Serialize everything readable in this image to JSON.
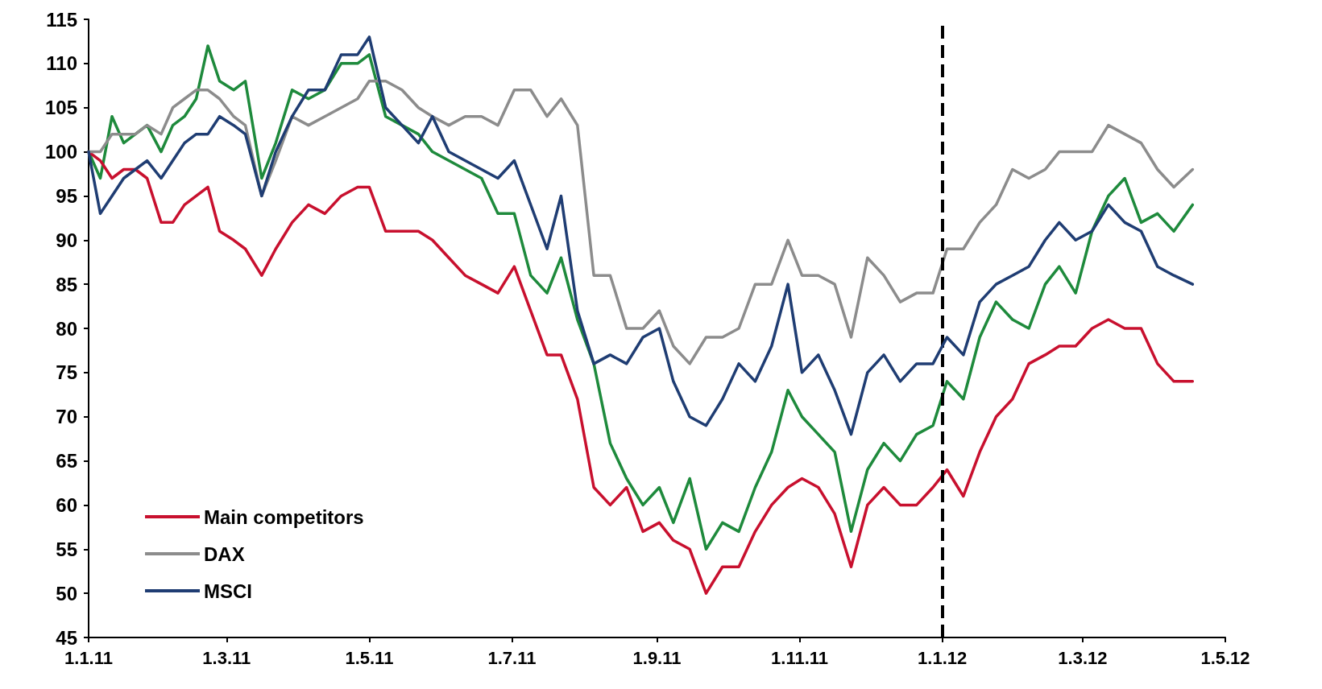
{
  "chart_data": {
    "type": "line",
    "x": [
      "2011-01-01",
      "2011-01-06",
      "2011-01-11",
      "2011-01-16",
      "2011-01-21",
      "2011-01-26",
      "2011-02-01",
      "2011-02-06",
      "2011-02-11",
      "2011-02-16",
      "2011-02-21",
      "2011-02-26",
      "2011-03-04",
      "2011-03-09",
      "2011-03-16",
      "2011-03-22",
      "2011-03-29",
      "2011-04-05",
      "2011-04-12",
      "2011-04-19",
      "2011-04-26",
      "2011-05-01",
      "2011-05-08",
      "2011-05-15",
      "2011-05-22",
      "2011-05-28",
      "2011-06-04",
      "2011-06-11",
      "2011-06-18",
      "2011-06-25",
      "2011-07-02",
      "2011-07-09",
      "2011-07-16",
      "2011-07-22",
      "2011-07-29",
      "2011-08-05",
      "2011-08-12",
      "2011-08-19",
      "2011-08-26",
      "2011-09-02",
      "2011-09-08",
      "2011-09-15",
      "2011-09-22",
      "2011-09-29",
      "2011-10-06",
      "2011-10-13",
      "2011-10-20",
      "2011-10-27",
      "2011-11-02",
      "2011-11-09",
      "2011-11-16",
      "2011-11-23",
      "2011-11-30",
      "2011-12-07",
      "2011-12-14",
      "2011-12-21",
      "2011-12-28",
      "2012-01-03",
      "2012-01-10",
      "2012-01-17",
      "2012-01-24",
      "2012-01-31",
      "2012-02-07",
      "2012-02-14",
      "2012-02-20",
      "2012-02-27",
      "2012-03-05",
      "2012-03-12",
      "2012-03-19",
      "2012-03-26",
      "2012-04-02",
      "2012-04-09",
      "2012-04-17"
    ],
    "series": [
      {
        "color": "#1e8a3c",
        "values": [
          100,
          97,
          104,
          101,
          102,
          103,
          100,
          103,
          104,
          106,
          112,
          108,
          107,
          108,
          97,
          101,
          107,
          106,
          107,
          110,
          110,
          111,
          104,
          103,
          102,
          100,
          99,
          98,
          97,
          93,
          93,
          86,
          84,
          88,
          81,
          76,
          67,
          63,
          60,
          62,
          58,
          63,
          55,
          58,
          57,
          62,
          66,
          73,
          70,
          68,
          66,
          57,
          64,
          67,
          65,
          68,
          69,
          74,
          72,
          79,
          83,
          81,
          80,
          85,
          87,
          84,
          91,
          95,
          97,
          92,
          93,
          91,
          94
        ]
      },
      {
        "name": "Main competitors",
        "color": "#c8102e",
        "values": [
          100,
          99,
          97,
          98,
          98,
          97,
          92,
          92,
          94,
          95,
          96,
          91,
          90,
          89,
          86,
          89,
          92,
          94,
          93,
          95,
          96,
          96,
          91,
          91,
          91,
          90,
          88,
          86,
          85,
          84,
          87,
          82,
          77,
          77,
          72,
          62,
          60,
          62,
          57,
          58,
          56,
          55,
          50,
          53,
          53,
          57,
          60,
          62,
          63,
          62,
          59,
          53,
          60,
          62,
          60,
          60,
          62,
          64,
          61,
          66,
          70,
          72,
          76,
          77,
          78,
          78,
          80,
          81,
          80,
          80,
          76,
          74,
          74
        ]
      },
      {
        "name": "DAX",
        "color": "#8c8c8c",
        "values": [
          100,
          100,
          102,
          102,
          102,
          103,
          102,
          105,
          106,
          107,
          107,
          106,
          104,
          103,
          95,
          99,
          104,
          103,
          104,
          105,
          106,
          108,
          108,
          107,
          105,
          104,
          103,
          104,
          104,
          103,
          107,
          107,
          104,
          106,
          103,
          86,
          86,
          80,
          80,
          82,
          78,
          76,
          79,
          79,
          80,
          85,
          85,
          90,
          86,
          86,
          85,
          79,
          88,
          86,
          83,
          84,
          84,
          89,
          89,
          92,
          94,
          98,
          97,
          98,
          100,
          100,
          100,
          103,
          102,
          101,
          98,
          96,
          98
        ]
      },
      {
        "name": "MSCI",
        "color": "#1f3d73",
        "values": [
          100,
          93,
          95,
          97,
          98,
          99,
          97,
          99,
          101,
          102,
          102,
          104,
          103,
          102,
          95,
          100,
          104,
          107,
          107,
          111,
          111,
          113,
          105,
          103,
          101,
          104,
          100,
          99,
          98,
          97,
          99,
          94,
          89,
          95,
          82,
          76,
          77,
          76,
          79,
          80,
          74,
          70,
          69,
          72,
          76,
          74,
          78,
          85,
          75,
          77,
          73,
          68,
          75,
          77,
          74,
          76,
          76,
          79,
          77,
          83,
          85,
          86,
          87,
          90,
          92,
          90,
          91,
          94,
          92,
          91,
          87,
          86,
          85
        ]
      }
    ],
    "xlim": [
      "2011-01-01",
      "2012-05-01"
    ],
    "xticks": [
      {
        "value": "2011-01-01",
        "label": "1.1.11"
      },
      {
        "value": "2011-03-01",
        "label": "1.3.11"
      },
      {
        "value": "2011-05-01",
        "label": "1.5.11"
      },
      {
        "value": "2011-07-01",
        "label": "1.7.11"
      },
      {
        "value": "2011-09-01",
        "label": "1.9.11"
      },
      {
        "value": "2011-11-01",
        "label": "1.11.11"
      },
      {
        "value": "2012-01-01",
        "label": "1.1.12"
      },
      {
        "value": "2012-03-01",
        "label": "1.3.12"
      },
      {
        "value": "2012-05-01",
        "label": "1.5.12"
      }
    ],
    "ylim": [
      45,
      115
    ],
    "yticks": [
      45,
      50,
      55,
      60,
      65,
      70,
      75,
      80,
      85,
      90,
      95,
      100,
      105,
      110,
      115
    ],
    "ref_lines": [
      {
        "axis": "x",
        "value": "2012-01-01",
        "color": "#000000",
        "line_style": "dashed"
      }
    ],
    "grid": false,
    "legend": "bottom left",
    "marker": "none",
    "line_style": "solid"
  }
}
